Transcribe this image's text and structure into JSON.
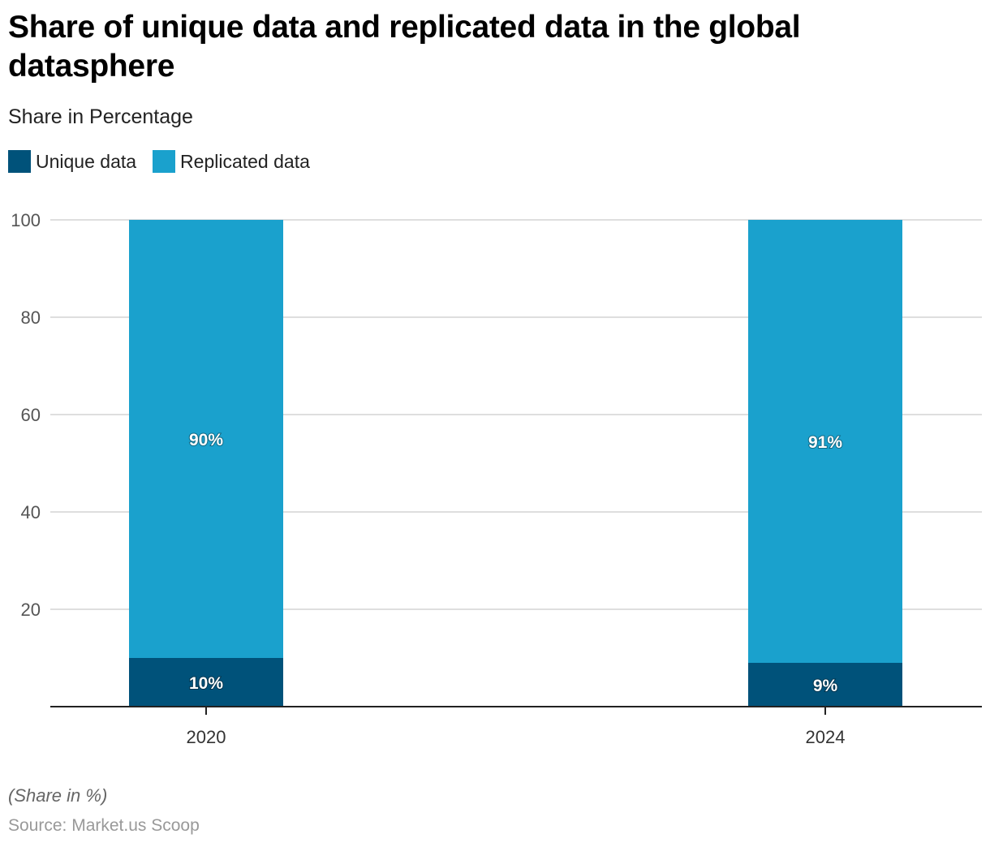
{
  "header": {
    "title": "Share of unique data and replicated data in the global datasphere",
    "subtitle": "Share in Percentage"
  },
  "legend": [
    {
      "label": "Unique data",
      "color": "#00527a"
    },
    {
      "label": "Replicated data",
      "color": "#1aa1cd"
    }
  ],
  "footer": {
    "note": "(Share in %)",
    "source": "Source: Market.us Scoop"
  },
  "chart_data": {
    "type": "bar",
    "stacked": true,
    "title": "Share of unique data and replicated data in the global datasphere",
    "subtitle": "Share in Percentage",
    "xlabel": "",
    "ylabel": "",
    "categories": [
      "2020",
      "2024"
    ],
    "series": [
      {
        "name": "Unique data",
        "values": [
          10,
          9
        ],
        "labels": [
          "10%",
          "9%"
        ],
        "color": "#00527a"
      },
      {
        "name": "Replicated data",
        "values": [
          90,
          91
        ],
        "labels": [
          "90%",
          "91%"
        ],
        "color": "#1aa1cd"
      }
    ],
    "ylim": [
      0,
      100
    ],
    "yticks": [
      20,
      40,
      60,
      80,
      100
    ],
    "grid": true,
    "legend_position": "top-left"
  }
}
